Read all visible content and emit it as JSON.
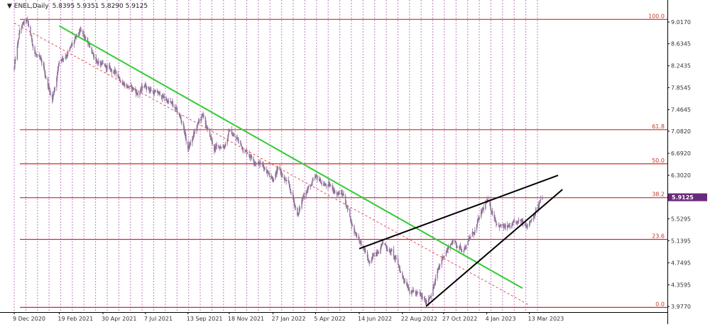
{
  "chart_data": {
    "type": "candlestick",
    "title": "ENEL,Daily",
    "ohlc_label": "5.8395 5.9351 5.8290 5.9125",
    "current_price": "5.9125",
    "y_range": [
      3.977,
      9.22
    ],
    "y_ticks": [
      "9.0170",
      "8.6345",
      "8.2435",
      "7.8545",
      "7.4645",
      "7.0820",
      "6.6920",
      "6.3020",
      "5.9125",
      "5.5295",
      "5.1395",
      "4.7495",
      "4.3595",
      "3.9770"
    ],
    "x_ticks": [
      "9 Dec 2020",
      "19 Feb 2021",
      "30 Apr 2021",
      "7 Jul 2021",
      "13 Sep 2021",
      "18 Nov 2021",
      "27 Jan 2022",
      "5 Apr 2022",
      "14 Jun 2022",
      "22 Aug 2022",
      "27 Oct 2022",
      "4 Jan 2023",
      "13 Mar 2023"
    ],
    "fibonacci_levels": [
      {
        "label": "100.0",
        "value": 9.065
      },
      {
        "label": "61.8",
        "value": 7.11
      },
      {
        "label": "50.0",
        "value": 6.505
      },
      {
        "label": "38.2",
        "value": 5.905
      },
      {
        "label": "23.6",
        "value": 5.165
      },
      {
        "label": "0.0",
        "value": 3.96
      }
    ],
    "price_path": [
      [
        "9 Dec 2020",
        8.2
      ],
      [
        "19 Dec 2020",
        8.9
      ],
      [
        "29 Dec 2020",
        9.0
      ],
      [
        "10 Jan 2021",
        8.5
      ],
      [
        "25 Jan 2021",
        8.15
      ],
      [
        "8 Feb 2021",
        7.65
      ],
      [
        "19 Feb 2021",
        8.35
      ],
      [
        "8 Mar 2021",
        8.55
      ],
      [
        "25 Mar 2021",
        8.8
      ],
      [
        "10 Apr 2021",
        8.5
      ],
      [
        "30 Apr 2021",
        8.2
      ],
      [
        "20 May 2021",
        8.1
      ],
      [
        "10 Jun 2021",
        7.9
      ],
      [
        "25 Jun 2021",
        7.75
      ],
      [
        "7 Jul 2021",
        7.9
      ],
      [
        "25 Jul 2021",
        7.75
      ],
      [
        "15 Aug 2021",
        7.6
      ],
      [
        "5 Sep 2021",
        7.2
      ],
      [
        "13 Sep 2021",
        6.75
      ],
      [
        "5 Oct 2021",
        7.35
      ],
      [
        "25 Oct 2021",
        6.75
      ],
      [
        "10 Nov 2021",
        6.85
      ],
      [
        "18 Nov 2021",
        7.1
      ],
      [
        "10 Dec 2021",
        6.8
      ],
      [
        "5 Jan 2022",
        6.55
      ],
      [
        "27 Jan 2022",
        6.3
      ],
      [
        "5 Feb 2022",
        6.4
      ],
      [
        "20 Feb 2022",
        6.1
      ],
      [
        "8 Mar 2022",
        5.6
      ],
      [
        "20 Mar 2022",
        6.05
      ],
      [
        "5 Apr 2022",
        6.2
      ],
      [
        "25 Apr 2022",
        6.1
      ],
      [
        "20 May 2022",
        5.95
      ],
      [
        "5 Jun 2022",
        5.35
      ],
      [
        "14 Jun 2022",
        5.2
      ],
      [
        "1 Jul 2022",
        4.7
      ],
      [
        "20 Jul 2022",
        5.15
      ],
      [
        "5 Aug 2022",
        4.95
      ],
      [
        "22 Aug 2022",
        4.5
      ],
      [
        "15 Sep 2022",
        4.2
      ],
      [
        "29 Sep 2022",
        4.0
      ],
      [
        "15 Oct 2022",
        4.5
      ],
      [
        "27 Oct 2022",
        4.9
      ],
      [
        "10 Nov 2022",
        5.15
      ],
      [
        "25 Nov 2022",
        5.0
      ],
      [
        "15 Dec 2022",
        5.3
      ],
      [
        "4 Jan 2023",
        5.8
      ],
      [
        "20 Jan 2023",
        5.5
      ],
      [
        "5 Feb 2023",
        5.35
      ],
      [
        "25 Feb 2023",
        5.4
      ],
      [
        "13 Mar 2023",
        5.5
      ],
      [
        "22 Mar 2023",
        5.7
      ],
      [
        "3 Apr 2023",
        5.9125
      ]
    ],
    "trendlines": [
      {
        "name": "green-downtrend",
        "color": "#33cc33",
        "points": [
          [
            "19 Feb 2021",
            8.95
          ],
          [
            "2 Mar 2023",
            4.3
          ]
        ]
      },
      {
        "name": "red-dashed-trend",
        "color": "#e05050",
        "points": [
          [
            "9 Dec 2020",
            9.0
          ],
          [
            "13 Mar 2023",
            4.0
          ]
        ]
      },
      {
        "name": "wedge-upper",
        "color": "#000000",
        "points": [
          [
            "14 Jun 2022",
            5.0
          ],
          [
            "28 Apr 2023",
            6.3
          ]
        ]
      },
      {
        "name": "wedge-lower",
        "color": "#000000",
        "points": [
          [
            "29 Sep 2022",
            3.98
          ],
          [
            "5 May 2023",
            6.05
          ]
        ]
      }
    ],
    "colors": {
      "candle": "#8e6f98",
      "fib_line": "#d62728",
      "grid": "#c080c0",
      "price_tag": "#6a2a7a"
    },
    "grid": "vertical-dotted",
    "legend": "none"
  }
}
